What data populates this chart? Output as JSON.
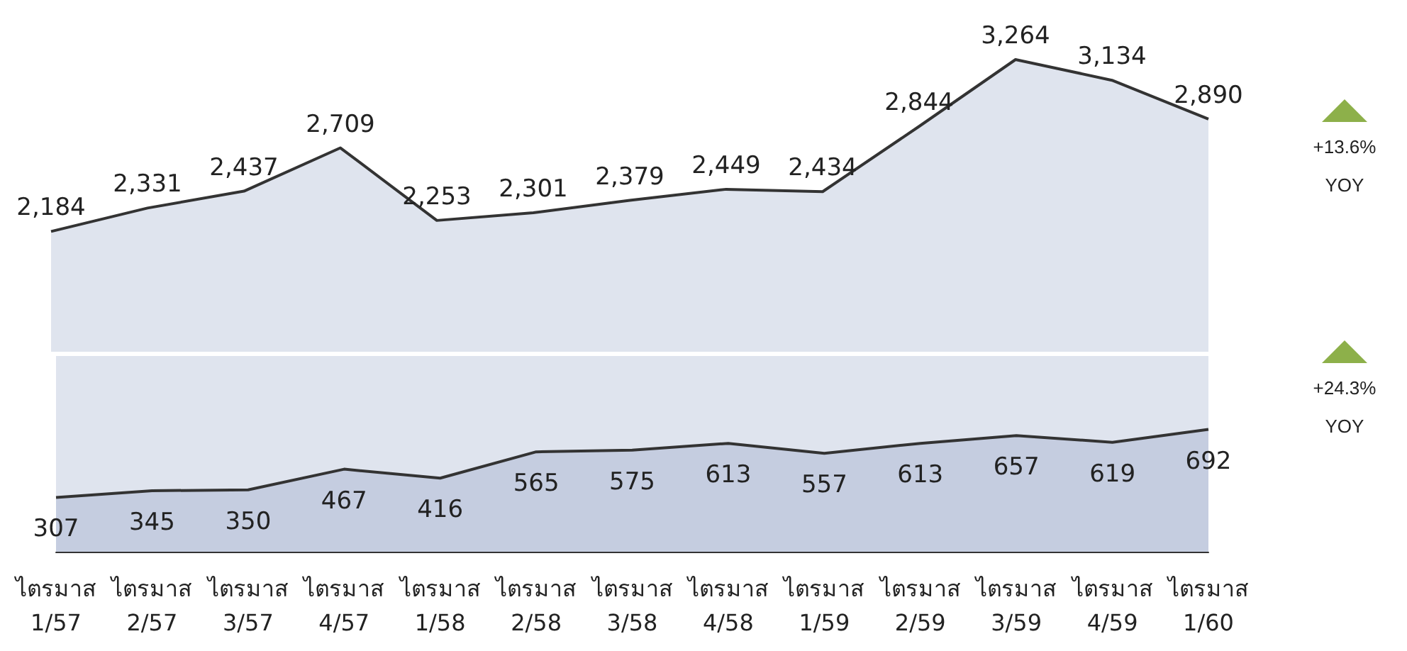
{
  "chart_data": [
    {
      "type": "area",
      "categories": [
        null,
        null,
        null,
        null,
        null,
        null,
        null,
        null,
        null,
        null,
        null,
        null,
        null
      ],
      "tick_labels": false,
      "series": [
        {
          "color": "#dfe4ee",
          "values": [
            2184,
            2331,
            2437,
            2709,
            2253,
            2301,
            2379,
            2449,
            2434,
            2844,
            3264,
            3134,
            2890
          ],
          "value_labels": [
            "2,184",
            "2,331",
            "2,437",
            "2,709",
            "2,253",
            "2,301",
            "2,379",
            "2,449",
            "2,434",
            "2,844",
            "3,264",
            "3,134",
            "2,890"
          ]
        }
      ],
      "annotations": [
        "+13.6%",
        "YOY"
      ]
    },
    {
      "type": "area",
      "categories": [
        "ไตรมาส 1/57",
        "ไตรมาส 2/57",
        "ไตรมาส 3/57",
        "ไตรมาส 4/57",
        "ไตรมาส 1/58",
        "ไตรมาส 2/58",
        "ไตรมาส 3/58",
        "ไตรมาส 4/58",
        "ไตรมาส 1/59",
        "ไตรมาส 2/59",
        "ไตรมาส 3/59",
        "ไตรมาส 4/59",
        "ไตรมาส 1/60"
      ],
      "series": [
        {
          "color": "#c5cde0",
          "values": [
            307,
            345,
            350,
            467,
            416,
            565,
            575,
            613,
            557,
            613,
            657,
            619,
            692
          ],
          "value_labels": [
            "307",
            "345",
            "350",
            "467",
            "416",
            "565",
            "575",
            "613",
            "557",
            "613",
            "657",
            "619",
            "692"
          ]
        }
      ],
      "annotations": [
        "+24.3%",
        "YOY"
      ]
    }
  ]
}
